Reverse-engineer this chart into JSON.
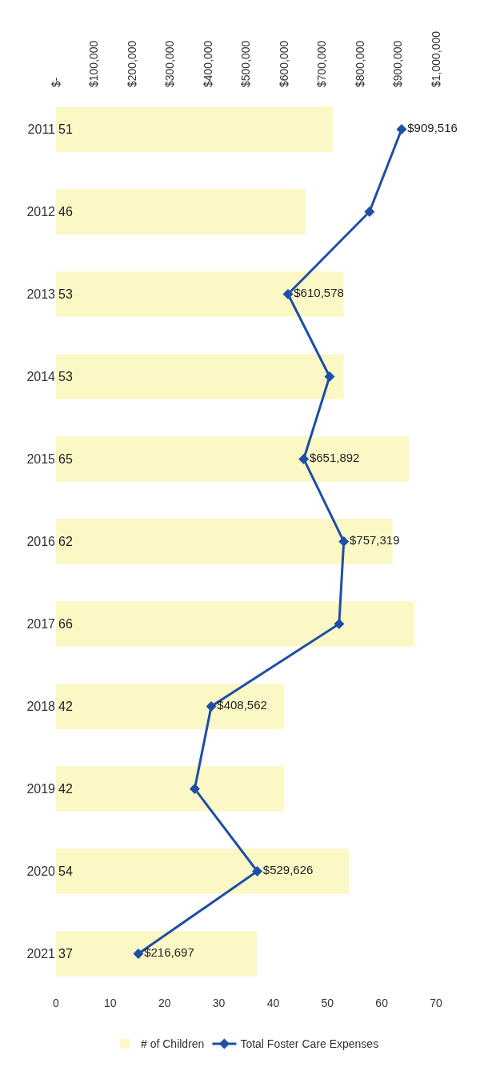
{
  "chart_data": {
    "type": "bar",
    "orientation": "horizontal",
    "categories": [
      "2011",
      "2012",
      "2013",
      "2014",
      "2015",
      "2016",
      "2017",
      "2018",
      "2019",
      "2020",
      "2021"
    ],
    "series": [
      {
        "name": "# of Children",
        "color": "#fbf8c6",
        "values": [
          51,
          46,
          53,
          53,
          65,
          62,
          66,
          42,
          42,
          54,
          37
        ],
        "value_labels": [
          "51",
          "46",
          "53",
          "53",
          "65",
          "62",
          "66",
          "42",
          "42",
          "54",
          "37"
        ]
      },
      {
        "name": "Total Foster Care Expenses",
        "type": "line",
        "axis": "x2",
        "color": "#1f4ea6",
        "values": [
          909516,
          825000,
          610578,
          720000,
          651892,
          757319,
          745000,
          408562,
          365000,
          529626,
          216697
        ],
        "value_labels": [
          "$909,516",
          null,
          "$610,578",
          null,
          "$651,892",
          "$757,319",
          null,
          "$408,562",
          null,
          "$529,626",
          "$216,697"
        ]
      }
    ],
    "xlim": [
      0,
      70
    ],
    "xticks": [
      0,
      10,
      20,
      30,
      40,
      50,
      60,
      70
    ],
    "x2lim": [
      0,
      1000000
    ],
    "x2ticks": [
      {
        "value": 0,
        "label": "$-"
      },
      {
        "value": 100000,
        "label": "$100,000"
      },
      {
        "value": 200000,
        "label": "$200,000"
      },
      {
        "value": 300000,
        "label": "$300,000"
      },
      {
        "value": 400000,
        "label": "$400,000"
      },
      {
        "value": 500000,
        "label": "$500,000"
      },
      {
        "value": 600000,
        "label": "$600,000"
      },
      {
        "value": 700000,
        "label": "$700,000"
      },
      {
        "value": 800000,
        "label": "$800,000"
      },
      {
        "value": 900000,
        "label": "$900,000"
      },
      {
        "value": 1000000,
        "label": "$1,000,000"
      }
    ],
    "marker": "diamond",
    "line_style": "solid",
    "legend": "bottom"
  }
}
